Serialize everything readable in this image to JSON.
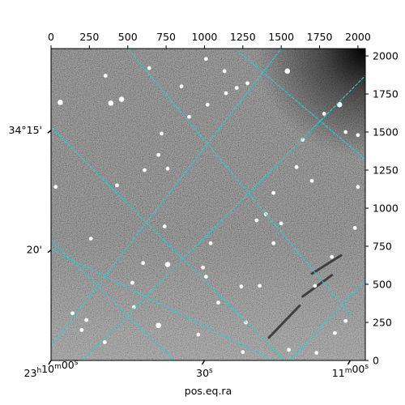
{
  "chart_data": {
    "type": "image",
    "xlabel": "pos.eq.ra",
    "ylabel": "",
    "pixel_axes": {
      "x": {
        "range": [
          0,
          2048
        ],
        "ticks": [
          0,
          250,
          500,
          750,
          1000,
          1250,
          1500,
          1750,
          2000
        ]
      },
      "y": {
        "range": [
          0,
          2048
        ],
        "ticks": [
          0,
          250,
          500,
          750,
          1000,
          1250,
          1500,
          1750,
          2000
        ]
      }
    },
    "world_axes": {
      "ra_ticks": [
        {
          "label": "23h10m00s",
          "x": 0
        },
        {
          "label": "30s",
          "x": 1000
        },
        {
          "label": "11m00s",
          "x": 1950
        }
      ],
      "dec_ticks": [
        {
          "label": "34°15'",
          "y": 1510
        },
        {
          "label": "20'",
          "y": 725
        }
      ]
    },
    "grid": true,
    "grid_color": "#22d3d3",
    "grid_lines": {
      "ra": [
        {
          "from": [
            800,
            0
          ],
          "to": [
            0,
            790
          ]
        },
        {
          "from": [
            1520,
            0
          ],
          "to": [
            0,
            1530
          ]
        },
        {
          "from": [
            1950,
            300
          ],
          "to": [
            500,
            2048
          ]
        },
        {
          "from": [
            2048,
            1320
          ],
          "to": [
            1200,
            2048
          ]
        }
      ],
      "dec": [
        {
          "from": [
            0,
            100
          ],
          "to": [
            1500,
            2048
          ]
        },
        {
          "from": [
            0,
            730
          ],
          "to": [
            1450,
            0
          ]
        },
        {
          "from": [
            200,
            0
          ],
          "to": [
            2048,
            1870
          ]
        },
        {
          "from": [
            1550,
            0
          ],
          "to": [
            2048,
            530
          ]
        }
      ]
    },
    "colormap": "gray",
    "bright_corner": "top-right",
    "stars": [
      [
        60,
        1695,
        3
      ],
      [
        355,
        1870,
        2
      ],
      [
        460,
        1715,
        3
      ],
      [
        390,
        1690,
        3
      ],
      [
        720,
        1490,
        2
      ],
      [
        1540,
        1900,
        3
      ],
      [
        1880,
        1680,
        3
      ],
      [
        1780,
        1620,
        2
      ],
      [
        1920,
        1500,
        2
      ],
      [
        2000,
        1480,
        2
      ],
      [
        1640,
        1450,
        2
      ],
      [
        1210,
        1790,
        2
      ],
      [
        1140,
        1755,
        2
      ],
      [
        850,
        1800,
        2
      ],
      [
        1020,
        1680,
        2
      ],
      [
        1450,
        1100,
        2
      ],
      [
        1400,
        960,
        2
      ],
      [
        1340,
        920,
        2
      ],
      [
        1500,
        900,
        2
      ],
      [
        1450,
        770,
        2
      ],
      [
        430,
        1150,
        2
      ],
      [
        610,
        1250,
        2
      ],
      [
        760,
        1260,
        2
      ],
      [
        260,
        800,
        2
      ],
      [
        740,
        880,
        2
      ],
      [
        760,
        630,
        3
      ],
      [
        1040,
        770,
        2
      ],
      [
        1010,
        550,
        2
      ],
      [
        990,
        610,
        2
      ],
      [
        530,
        510,
        2
      ],
      [
        1240,
        485,
        2
      ],
      [
        1090,
        380,
        2
      ],
      [
        1360,
        490,
        2
      ],
      [
        1720,
        490,
        2
      ],
      [
        1830,
        680,
        2
      ],
      [
        1920,
        260,
        2
      ],
      [
        230,
        265,
        2
      ],
      [
        200,
        200,
        2
      ],
      [
        350,
        120,
        2
      ],
      [
        700,
        230,
        3
      ],
      [
        960,
        170,
        2
      ],
      [
        1250,
        55,
        2
      ],
      [
        1270,
        250,
        2
      ],
      [
        1130,
        1900,
        2
      ],
      [
        1550,
        70,
        2
      ],
      [
        1730,
        50,
        2
      ],
      [
        1850,
        180,
        2
      ],
      [
        540,
        350,
        2
      ],
      [
        140,
        310,
        2
      ],
      [
        30,
        1140,
        2
      ],
      [
        640,
        1920,
        2
      ],
      [
        900,
        1600,
        2
      ],
      [
        1600,
        1270,
        2
      ],
      [
        1700,
        1180,
        2
      ],
      [
        1980,
        870,
        2
      ],
      [
        2000,
        1140,
        2
      ],
      [
        600,
        640,
        2
      ],
      [
        1010,
        1980,
        2
      ],
      [
        1280,
        1820,
        2
      ],
      [
        700,
        1350,
        2
      ]
    ],
    "streaks": [
      {
        "from": [
          1420,
          150
        ],
        "to": [
          1620,
          360
        ]
      },
      {
        "from": [
          1640,
          420
        ],
        "to": [
          1830,
          560
        ]
      },
      {
        "from": [
          1700,
          570
        ],
        "to": [
          1890,
          690
        ]
      }
    ]
  }
}
